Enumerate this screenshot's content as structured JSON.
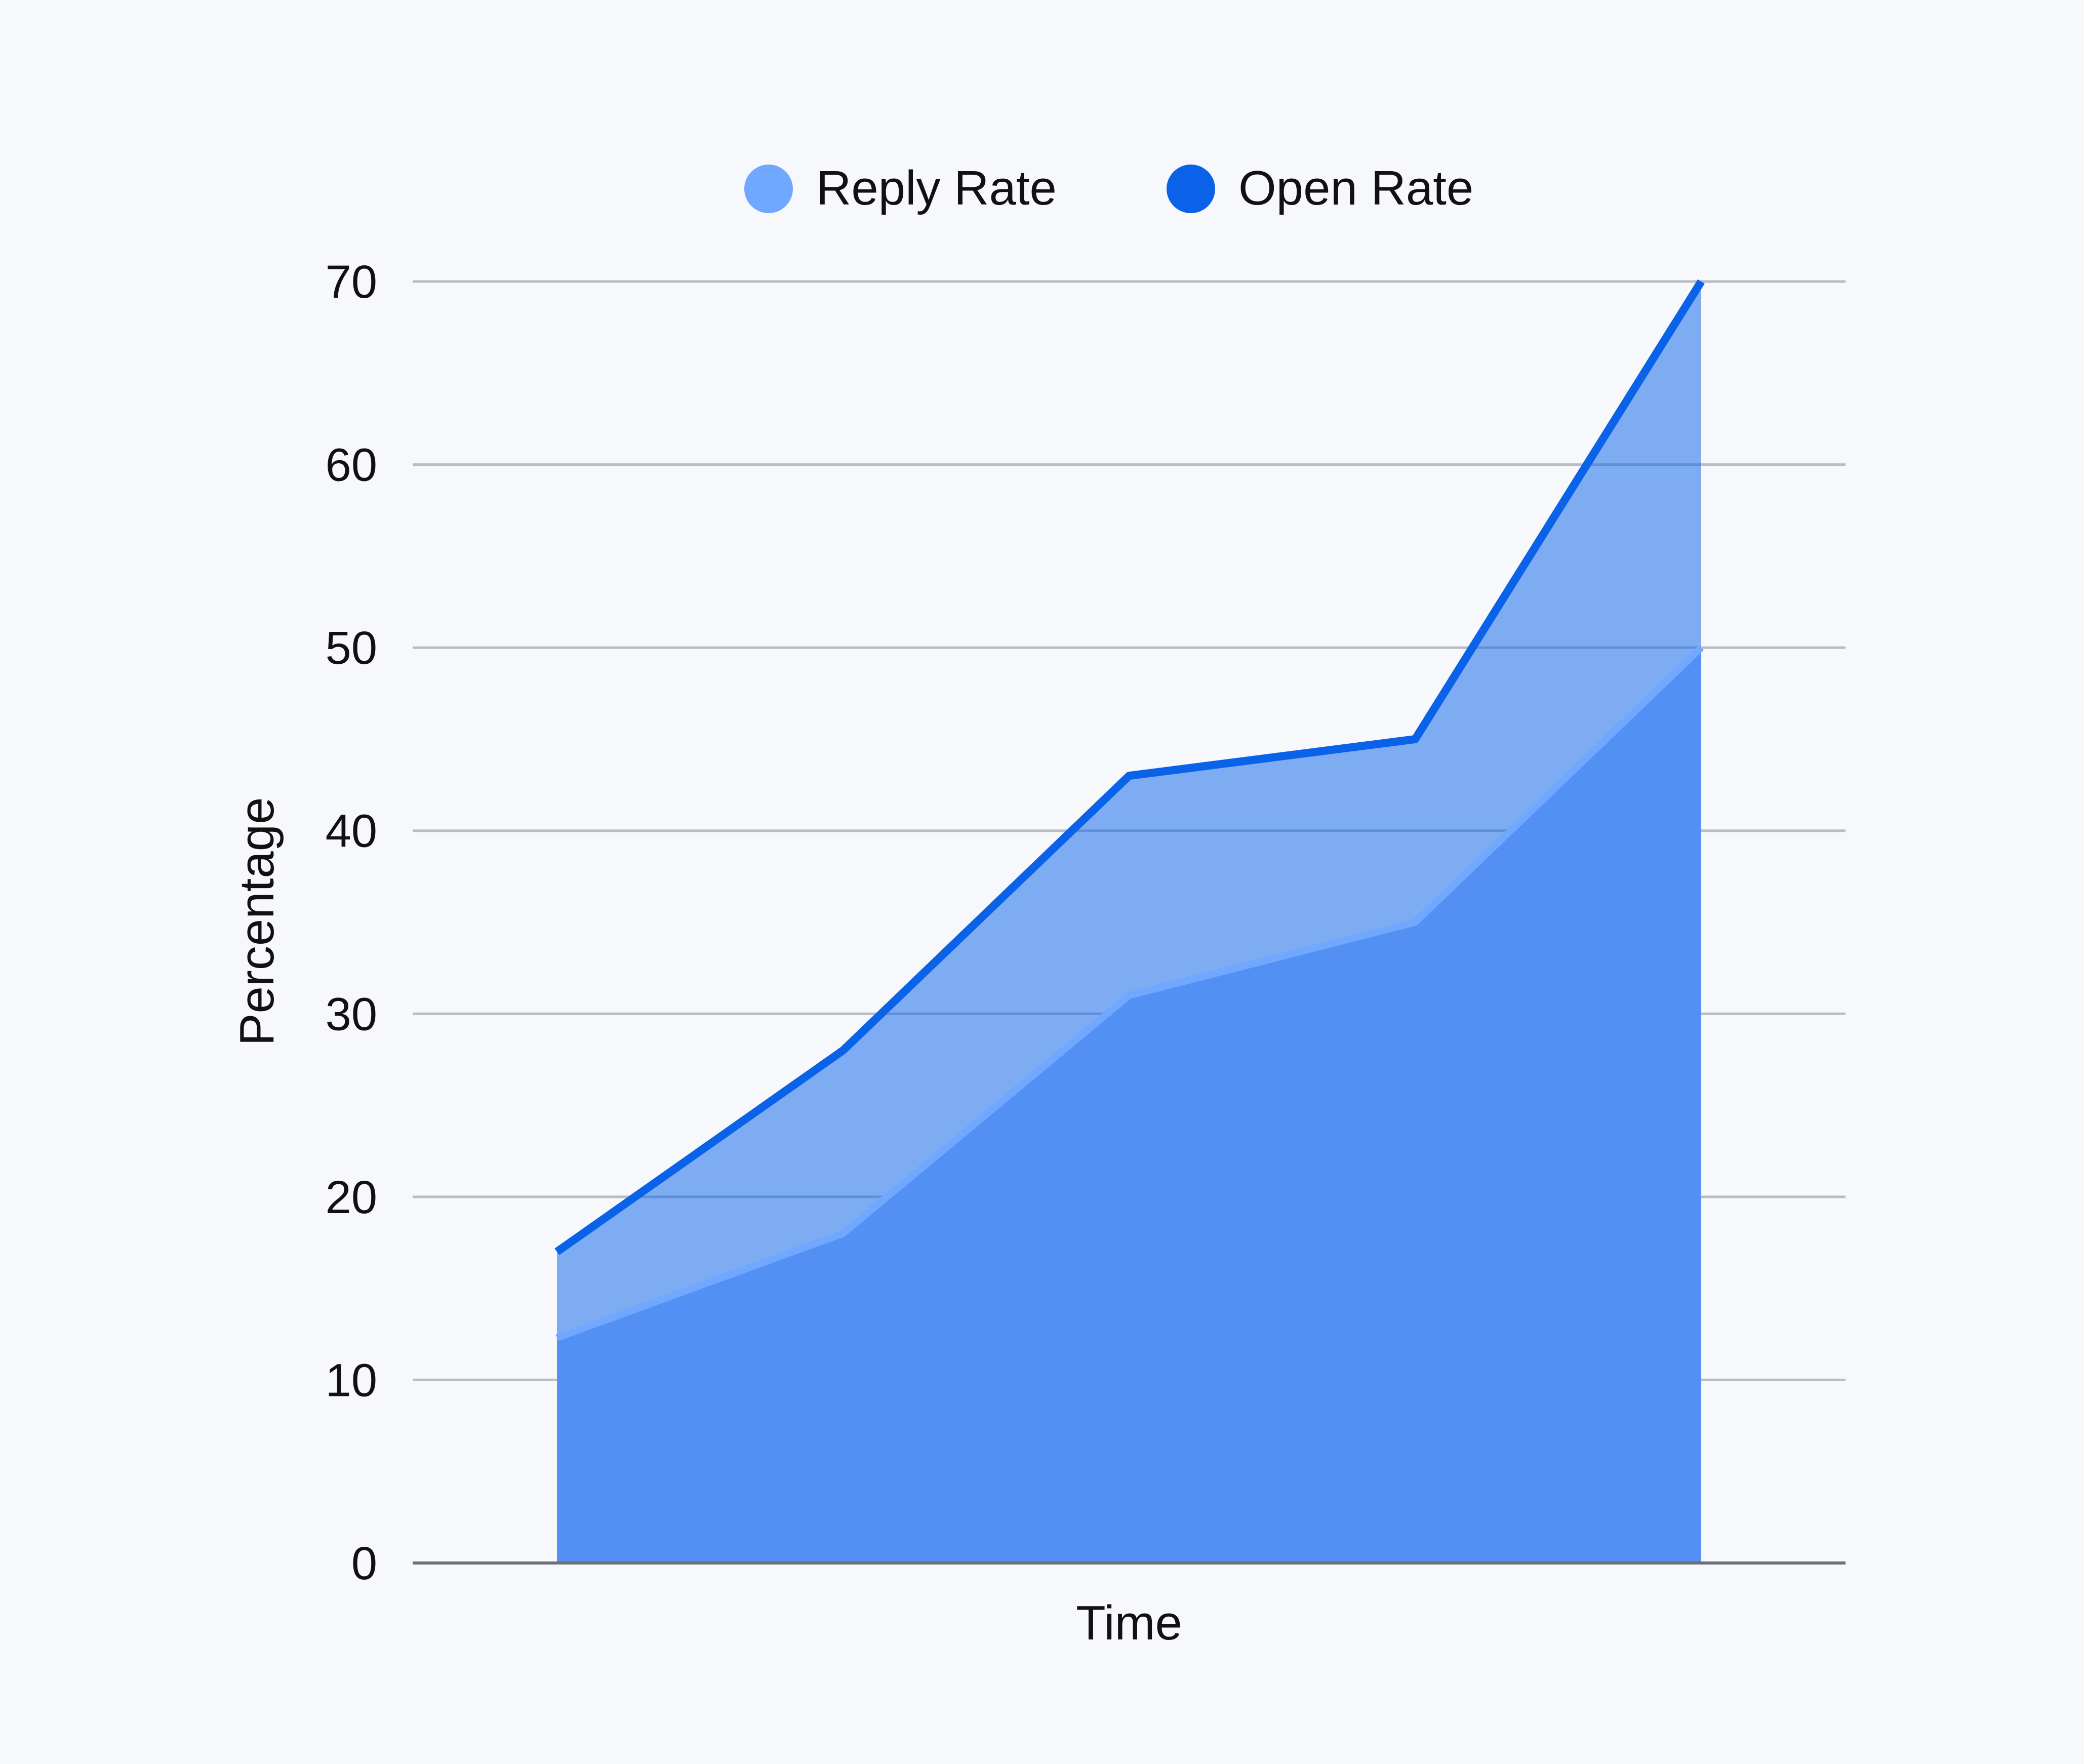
{
  "chart_data": {
    "type": "area",
    "stacked": false,
    "title": "",
    "xlabel": "Time",
    "ylabel": "Percentage",
    "ylim": [
      0,
      70
    ],
    "yticks": [
      0,
      10,
      20,
      30,
      40,
      50,
      60,
      70
    ],
    "grid": true,
    "legend_position": "top-center",
    "x": [
      1,
      2,
      3,
      4,
      5
    ],
    "series": [
      {
        "name": "Reply Rate",
        "color": "#70a8ff",
        "values": [
          12.3,
          18,
          31,
          35,
          50
        ]
      },
      {
        "name": "Open Rate",
        "color": "#0a62e8",
        "values": [
          17,
          28,
          43,
          45,
          70
        ]
      }
    ]
  }
}
